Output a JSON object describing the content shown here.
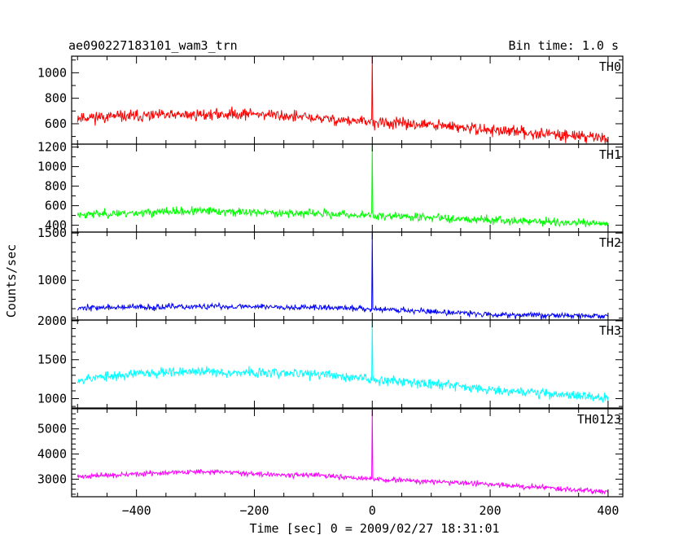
{
  "header": {
    "title": "ae090227183101_wam3_trn",
    "bin_time": "Bin time: 1.0 s"
  },
  "chart_data": {
    "type": "line",
    "xlabel": "Time [sec] 0 = 2009/02/27 18:31:01",
    "ylabel": "Counts/sec",
    "xlim": [
      -510,
      425
    ],
    "x_ticks": [
      -400,
      -200,
      0,
      200,
      400
    ],
    "x_tick_labels": [
      "−400",
      "−200",
      "0",
      "200",
      "400"
    ],
    "x_range": [
      -500,
      400
    ],
    "spike_x": 0,
    "grid": false,
    "panels": [
      {
        "name": "TH0",
        "color": "#ff0000",
        "ylim": [
          440,
          1130
        ],
        "y_ticks": [
          600,
          800,
          1000
        ],
        "y_tick_labels": [
          "600",
          "800",
          "1000"
        ],
        "trend": [
          [
            -500,
            650
          ],
          [
            -200,
            680
          ],
          [
            0,
            610
          ],
          [
            100,
            590
          ],
          [
            200,
            550
          ],
          [
            400,
            490
          ]
        ],
        "noise": 32,
        "spike": 1130,
        "seed": 11
      },
      {
        "name": "TH1",
        "color": "#00ff00",
        "ylim": [
          330,
          1230
        ],
        "y_ticks": [
          400,
          600,
          800,
          1000,
          1200
        ],
        "y_tick_labels": [
          "400",
          "600",
          "800",
          "1000",
          "1200"
        ],
        "trend": [
          [
            -500,
            510
          ],
          [
            -300,
            545
          ],
          [
            -100,
            520
          ],
          [
            0,
            500
          ],
          [
            100,
            480
          ],
          [
            400,
            410
          ]
        ],
        "noise": 30,
        "spike": 1220,
        "seed": 23
      },
      {
        "name": "TH2",
        "color": "#0000ff",
        "ylim": [
          580,
          1510
        ],
        "y_ticks": [
          1000,
          1500
        ],
        "y_tick_labels": [
          "1000",
          "1500"
        ],
        "trend": [
          [
            -500,
            710
          ],
          [
            -200,
            725
          ],
          [
            0,
            700
          ],
          [
            100,
            670
          ],
          [
            200,
            640
          ],
          [
            400,
            620
          ]
        ],
        "noise": 22,
        "spike": 1500,
        "seed": 37
      },
      {
        "name": "TH3",
        "color": "#00ffff",
        "ylim": [
          880,
          2010
        ],
        "y_ticks": [
          1000,
          1500,
          2000
        ],
        "y_tick_labels": [
          "1000",
          "1500",
          "2000"
        ],
        "trend": [
          [
            -500,
            1250
          ],
          [
            -350,
            1350
          ],
          [
            -100,
            1320
          ],
          [
            0,
            1250
          ],
          [
            100,
            1200
          ],
          [
            200,
            1120
          ],
          [
            400,
            1010
          ]
        ],
        "noise": 45,
        "spike": 2000,
        "seed": 53
      },
      {
        "name": "TH0123",
        "color": "#ff00ff",
        "ylim": [
          2300,
          5800
        ],
        "y_ticks": [
          3000,
          4000,
          5000
        ],
        "y_tick_labels": [
          "3000",
          "4000",
          "5000"
        ],
        "trend": [
          [
            -500,
            3100
          ],
          [
            -300,
            3300
          ],
          [
            -100,
            3150
          ],
          [
            0,
            3000
          ],
          [
            200,
            2800
          ],
          [
            400,
            2500
          ]
        ],
        "noise": 70,
        "spike": 5750,
        "seed": 71
      }
    ]
  }
}
